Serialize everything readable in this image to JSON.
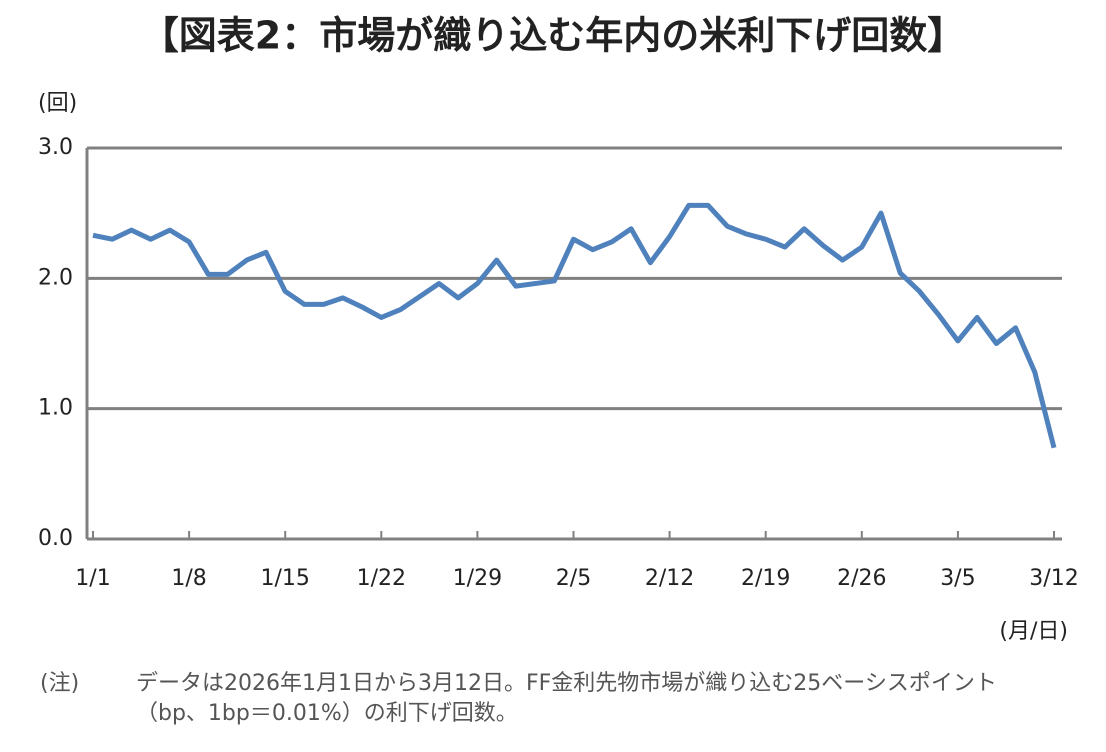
{
  "chart_data": {
    "type": "line",
    "title": "【図表2：市場が織り込む年内の米利下げ回数】",
    "y_axis_label": "(回)",
    "x_axis_label": "(月/日)",
    "categories": [
      "1/1",
      null,
      null,
      null,
      null,
      "1/8",
      null,
      null,
      null,
      null,
      "1/15",
      null,
      null,
      null,
      null,
      "1/22",
      null,
      null,
      null,
      null,
      "1/29",
      null,
      null,
      null,
      null,
      "2/5",
      null,
      null,
      null,
      null,
      "2/12",
      null,
      null,
      null,
      null,
      "2/19",
      null,
      null,
      null,
      null,
      "2/26",
      null,
      null,
      null,
      null,
      "3/5",
      null,
      null,
      null,
      null,
      "3/12"
    ],
    "series": [
      {
        "color": "#4f81bd",
        "values": [
          2.33,
          2.3,
          2.37,
          2.3,
          2.37,
          2.28,
          2.03,
          2.03,
          2.14,
          2.2,
          1.9,
          1.8,
          1.8,
          1.85,
          1.78,
          1.7,
          1.76,
          1.86,
          1.96,
          1.85,
          1.96,
          2.14,
          1.94,
          1.96,
          1.98,
          2.3,
          2.22,
          2.28,
          2.38,
          2.12,
          2.32,
          2.56,
          2.56,
          2.4,
          2.34,
          2.3,
          2.24,
          2.38,
          2.25,
          2.14,
          2.24,
          2.5,
          2.04,
          1.9,
          1.72,
          1.52,
          1.7,
          1.5,
          1.62,
          1.28,
          0.7
        ]
      }
    ],
    "ylim": [
      0,
      3
    ],
    "yticks": [
      {
        "value": 0,
        "label": "0.0"
      },
      {
        "value": 1,
        "label": "1.0"
      },
      {
        "value": 2,
        "label": "2.0"
      },
      {
        "value": 3,
        "label": "3.0"
      }
    ],
    "grid": true,
    "note": {
      "label": "(注)",
      "lines": [
        "データは2026年1月1日から3月12日。FF金利先物市場が織り込む25ベーシスポイント",
        "（bp、1bp＝0.01%）の利下げ回数。"
      ]
    }
  }
}
